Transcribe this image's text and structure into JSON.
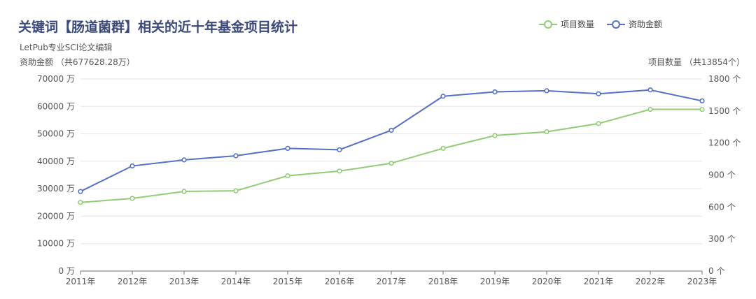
{
  "chart_data": {
    "type": "line",
    "title": "关键词【肠道菌群】相关的近十年基金项目统计",
    "subtitle": "LetPub专业SCI论文编辑",
    "y_left_label": "资助金额 （共677628.28万）",
    "y_right_label": "项目数量 （共13854个）",
    "x": [
      "2011年",
      "2012年",
      "2013年",
      "2014年",
      "2015年",
      "2016年",
      "2017年",
      "2018年",
      "2019年",
      "2020年",
      "2021年",
      "2022年",
      "2023年"
    ],
    "y_left_ticks": [
      "0 万",
      "10000 万",
      "20000 万",
      "30000 万",
      "40000 万",
      "50000 万",
      "60000 万",
      "70000 万"
    ],
    "y_right_ticks": [
      "0 个",
      "300 个",
      "600 个",
      "900 个",
      "1200 个",
      "1500 个",
      "1800 个"
    ],
    "ylim_left": [
      0,
      70000
    ],
    "ylim_right": [
      0,
      1800
    ],
    "legend_position": "top-right",
    "series": [
      {
        "name": "项目数量",
        "axis": "right",
        "color": "#91cc75",
        "values": [
          643,
          681,
          746,
          752,
          893,
          937,
          1010,
          1150,
          1270,
          1305,
          1382,
          1515,
          1515
        ]
      },
      {
        "name": "资助金额",
        "axis": "left",
        "color": "#5470c6",
        "values": [
          29000,
          38300,
          40500,
          42000,
          44700,
          44200,
          51300,
          63700,
          65300,
          65700,
          64600,
          66000,
          62000
        ]
      }
    ]
  }
}
